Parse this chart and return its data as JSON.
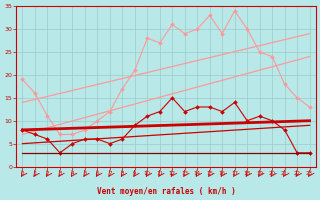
{
  "background_color": "#b8e8e8",
  "grid_color": "#99cccc",
  "xlabel": "Vent moyen/en rafales ( km/h )",
  "xlabel_color": "#cc0000",
  "tick_color": "#cc0000",
  "xlim": [
    -0.5,
    23.5
  ],
  "ylim": [
    0,
    35
  ],
  "yticks": [
    0,
    5,
    10,
    15,
    20,
    25,
    30,
    35
  ],
  "xticks": [
    0,
    1,
    2,
    3,
    4,
    5,
    6,
    7,
    8,
    9,
    10,
    11,
    12,
    13,
    14,
    15,
    16,
    17,
    18,
    19,
    20,
    21,
    22,
    23
  ],
  "series": [
    {
      "x": [
        0,
        1,
        2,
        3,
        4,
        5,
        6,
        7,
        8,
        9,
        10,
        11,
        12,
        13,
        14,
        15,
        16,
        17,
        18,
        19,
        20,
        21,
        22,
        23
      ],
      "y": [
        19,
        16,
        11,
        7,
        7,
        8,
        10,
        12,
        17,
        21,
        28,
        27,
        31,
        29,
        30,
        33,
        29,
        34,
        30,
        25,
        24,
        18,
        15,
        13
      ],
      "color": "#ff9999",
      "linewidth": 0.8,
      "marker": "D",
      "markersize": 2.0,
      "alpha": 1.0
    },
    {
      "x": [
        0,
        23
      ],
      "y": [
        14,
        29
      ],
      "color": "#ff9999",
      "linewidth": 0.9,
      "marker": null,
      "markersize": 0,
      "alpha": 1.0
    },
    {
      "x": [
        0,
        23
      ],
      "y": [
        7,
        24
      ],
      "color": "#ff9999",
      "linewidth": 0.9,
      "marker": null,
      "markersize": 0,
      "alpha": 1.0
    },
    {
      "x": [
        0,
        1,
        2,
        3,
        4,
        5,
        6,
        7,
        8,
        9,
        10,
        11,
        12,
        13,
        14,
        15,
        16,
        17,
        18,
        19,
        20,
        21,
        22,
        23
      ],
      "y": [
        8,
        7,
        6,
        3,
        5,
        6,
        6,
        5,
        6,
        9,
        11,
        12,
        15,
        12,
        13,
        13,
        12,
        14,
        10,
        11,
        10,
        8,
        3,
        3
      ],
      "color": "#cc0000",
      "linewidth": 0.8,
      "marker": "D",
      "markersize": 2.0,
      "alpha": 1.0
    },
    {
      "x": [
        0,
        23
      ],
      "y": [
        8,
        10
      ],
      "color": "#cc0000",
      "linewidth": 2.0,
      "marker": null,
      "markersize": 0,
      "alpha": 1.0
    },
    {
      "x": [
        0,
        23
      ],
      "y": [
        5,
        9
      ],
      "color": "#cc0000",
      "linewidth": 0.9,
      "marker": null,
      "markersize": 0,
      "alpha": 1.0
    },
    {
      "x": [
        0,
        1,
        2,
        3,
        4,
        5,
        6,
        7,
        8,
        9,
        10,
        11,
        12,
        13,
        14,
        15,
        16,
        17,
        18,
        19,
        20,
        21,
        22,
        23
      ],
      "y": [
        3,
        3,
        3,
        3,
        3,
        3,
        3,
        3,
        3,
        3,
        3,
        3,
        3,
        3,
        3,
        3,
        3,
        3,
        3,
        3,
        3,
        3,
        3,
        3
      ],
      "color": "#880000",
      "linewidth": 0.9,
      "marker": null,
      "markersize": 0,
      "alpha": 1.0
    }
  ],
  "arrow_color": "#cc0000"
}
